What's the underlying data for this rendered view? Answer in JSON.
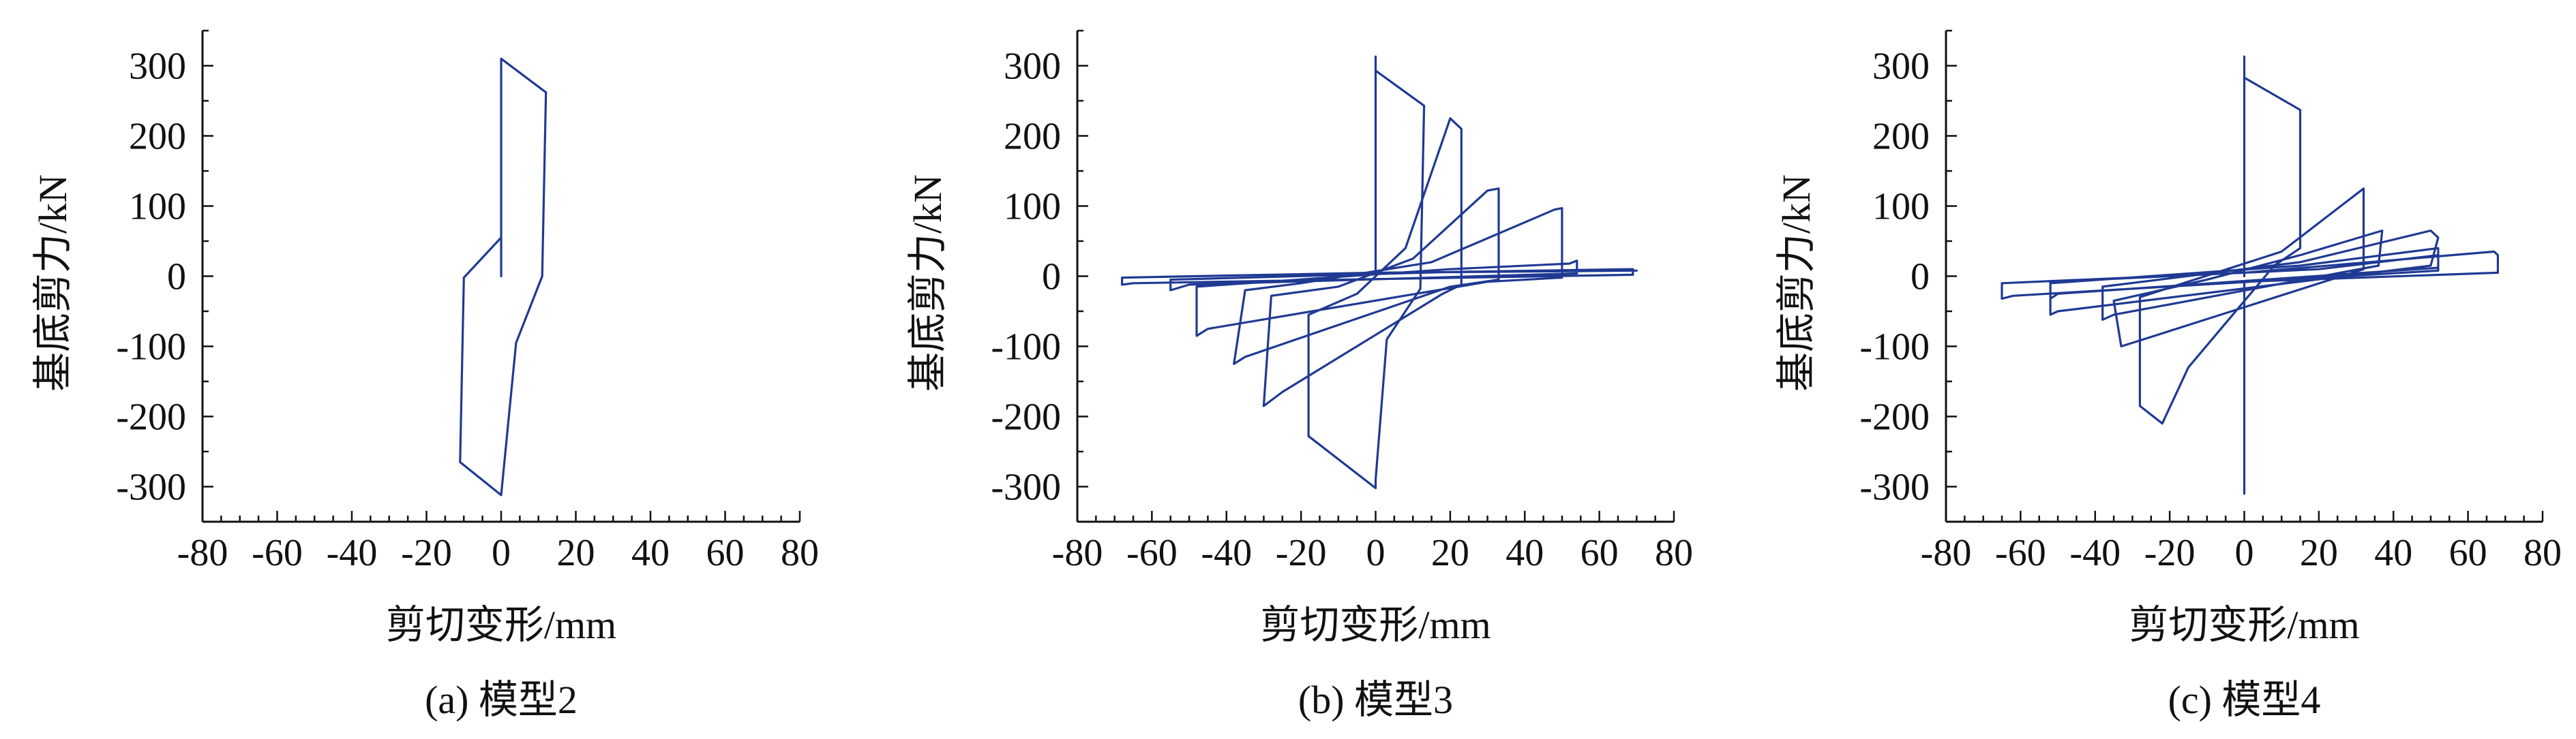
{
  "chart_data": [
    {
      "type": "line",
      "caption": "(a) 模型2",
      "xlabel": "剪切变形/mm",
      "ylabel": "基底剪力/kN",
      "xlim": [
        -80,
        80
      ],
      "ylim": [
        -350,
        350
      ],
      "xticks": [
        -80,
        -60,
        -40,
        -20,
        0,
        20,
        40,
        60,
        80
      ],
      "yticks": [
        -300,
        -200,
        -100,
        0,
        100,
        200,
        300
      ],
      "series": [
        {
          "color": "#1f3a93",
          "points": [
            [
              0,
              0
            ],
            [
              0,
              310
            ],
            [
              12,
              262
            ],
            [
              11,
              0
            ],
            [
              4,
              -95
            ],
            [
              0,
              -312
            ],
            [
              -11,
              -265
            ],
            [
              -10,
              -2
            ],
            [
              0,
              55
            ],
            [
              0,
              0
            ]
          ]
        }
      ]
    },
    {
      "type": "line",
      "caption": "(b) 模型3",
      "xlabel": "剪切变形/mm",
      "ylabel": "基底剪力/kN",
      "xlim": [
        -80,
        80
      ],
      "ylim": [
        -350,
        350
      ],
      "xticks": [
        -80,
        -60,
        -40,
        -20,
        0,
        20,
        40,
        60,
        80
      ],
      "yticks": [
        -300,
        -200,
        -100,
        0,
        100,
        200,
        300
      ],
      "series": [
        {
          "color": "#1f3a93",
          "points": [
            [
              0,
              0
            ],
            [
              0,
              313
            ],
            [
              0,
              293
            ],
            [
              13,
              243
            ],
            [
              12,
              -18
            ],
            [
              3,
              -90
            ],
            [
              0,
              -290
            ],
            [
              0,
              -302
            ],
            [
              -18,
              -228
            ],
            [
              -18,
              -55
            ],
            [
              -5,
              -25
            ],
            [
              8,
              40
            ],
            [
              20,
              225
            ],
            [
              23,
              210
            ],
            [
              23,
              -12
            ],
            [
              18,
              -25
            ],
            [
              -25,
              -165
            ],
            [
              -30,
              -185
            ],
            [
              -28,
              -28
            ],
            [
              -10,
              -15
            ],
            [
              10,
              25
            ],
            [
              30,
              122
            ],
            [
              33,
              125
            ],
            [
              33,
              -5
            ],
            [
              20,
              -15
            ],
            [
              -35,
              -115
            ],
            [
              -38,
              -125
            ],
            [
              -35,
              -20
            ],
            [
              -20,
              -10
            ],
            [
              15,
              20
            ],
            [
              48,
              95
            ],
            [
              50,
              97
            ],
            [
              50,
              -2
            ],
            [
              30,
              -8
            ],
            [
              -45,
              -75
            ],
            [
              -48,
              -85
            ],
            [
              -48,
              -15
            ],
            [
              20,
              10
            ],
            [
              52,
              18
            ],
            [
              54,
              22
            ],
            [
              54,
              4
            ],
            [
              -50,
              -12
            ],
            [
              -55,
              -20
            ],
            [
              -55,
              -5
            ],
            [
              20,
              6
            ],
            [
              68,
              10
            ],
            [
              69,
              10
            ],
            [
              69,
              2
            ],
            [
              -65,
              -10
            ],
            [
              -68,
              -12
            ],
            [
              -68,
              -2
            ],
            [
              0,
              5
            ],
            [
              70,
              8
            ]
          ]
        }
      ]
    },
    {
      "type": "line",
      "caption": "(c) 模型4",
      "xlabel": "剪切变形/mm",
      "ylabel": "基底剪力/kN",
      "xlim": [
        -80,
        80
      ],
      "ylim": [
        -350,
        350
      ],
      "xticks": [
        -80,
        -60,
        -40,
        -20,
        0,
        20,
        40,
        60,
        80
      ],
      "yticks": [
        -300,
        -200,
        -100,
        0,
        100,
        200,
        300
      ],
      "series": [
        {
          "color": "#1f3a93",
          "points": [
            [
              0,
              0
            ],
            [
              0,
              313
            ],
            [
              0,
              283
            ],
            [
              15,
              237
            ],
            [
              15,
              40
            ],
            [
              8,
              15
            ],
            [
              -15,
              -130
            ],
            [
              -22,
              -210
            ],
            [
              -28,
              -185
            ],
            [
              -28,
              -30
            ],
            [
              10,
              35
            ],
            [
              32,
              125
            ],
            [
              32,
              10
            ],
            [
              -30,
              -95
            ],
            [
              -33,
              -100
            ],
            [
              -35,
              -35
            ],
            [
              -10,
              -5
            ],
            [
              15,
              30
            ],
            [
              37,
              65
            ],
            [
              36,
              15
            ],
            [
              -35,
              -55
            ],
            [
              -38,
              -62
            ],
            [
              -38,
              -15
            ],
            [
              15,
              20
            ],
            [
              50,
              65
            ],
            [
              52,
              55
            ],
            [
              50,
              15
            ],
            [
              -50,
              -50
            ],
            [
              -52,
              -55
            ],
            [
              -52,
              -10
            ],
            [
              15,
              15
            ],
            [
              52,
              40
            ],
            [
              52,
              12
            ],
            [
              -50,
              -25
            ],
            [
              -52,
              -32
            ],
            [
              -52,
              -8
            ],
            [
              20,
              10
            ],
            [
              52,
              30
            ],
            [
              52,
              8
            ],
            [
              -62,
              -28
            ],
            [
              -65,
              -32
            ],
            [
              -65,
              -10
            ],
            [
              0,
              5
            ],
            [
              67,
              35
            ],
            [
              68,
              30
            ],
            [
              68,
              5
            ],
            [
              0,
              -8
            ],
            [
              0,
              -310
            ]
          ]
        }
      ]
    }
  ]
}
